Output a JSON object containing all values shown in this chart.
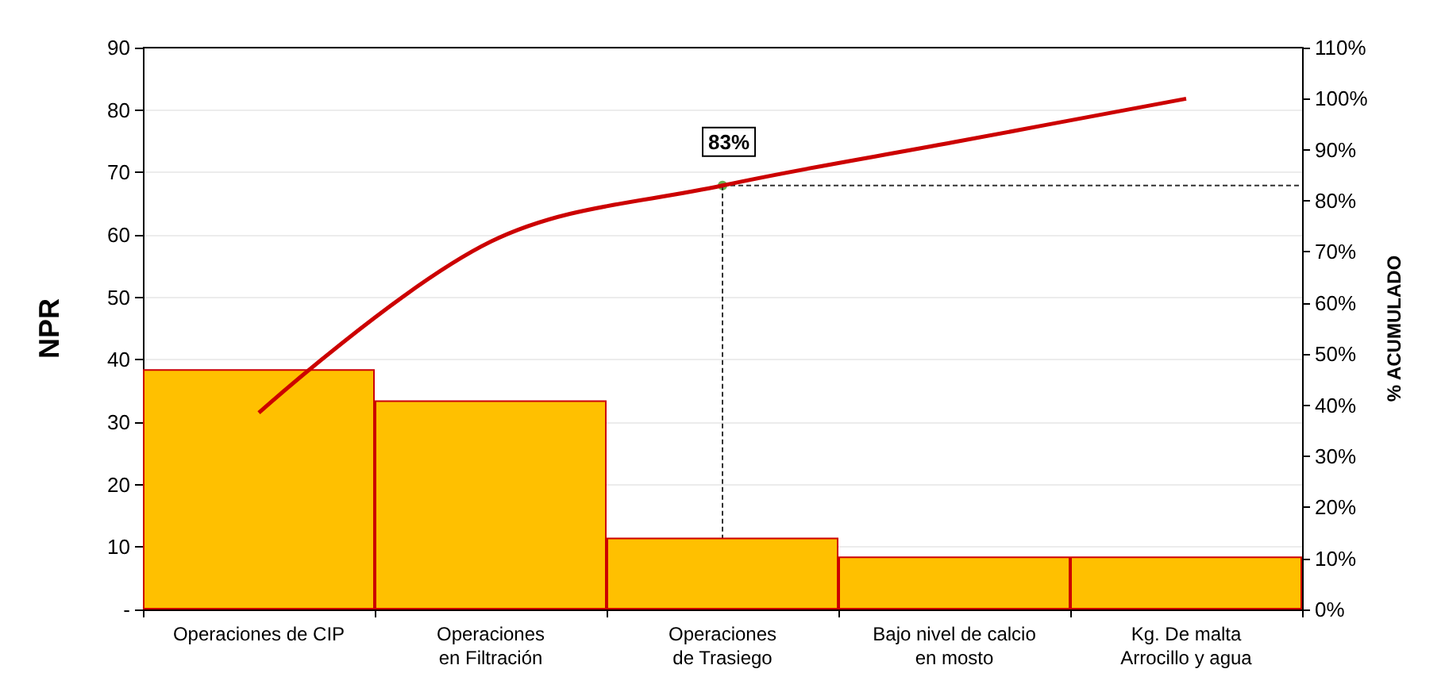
{
  "chart_data": {
    "type": "bar",
    "ylabel": "NPR",
    "y2label": "% ACUMULADO",
    "categories": [
      "Operaciones de CIP",
      "Operaciones\nen Filtración",
      "Operaciones\nde Trasiego",
      "Bajo nivel de calcio\nen mosto",
      "Kg. De malta\nArrocillo y agua"
    ],
    "series": [
      {
        "color": "#ffc000",
        "values": [
          38.5,
          33.5,
          11.5,
          8.5,
          8.5
        ]
      },
      {
        "type": "line",
        "axis": "y2",
        "color": "#cc0000",
        "values": [
          38.5,
          72,
          83,
          91.5,
          100
        ]
      }
    ],
    "ylim": [
      0,
      90
    ],
    "yticks": [
      {
        "value": 0,
        "label": "-"
      },
      10,
      20,
      30,
      40,
      50,
      60,
      70,
      80,
      90
    ],
    "y2lim": [
      0,
      110
    ],
    "y2ticks": [
      {
        "value": 0,
        "label": "0%"
      },
      {
        "value": 10,
        "label": "10%"
      },
      {
        "value": 20,
        "label": "20%"
      },
      {
        "value": 30,
        "label": "30%"
      },
      {
        "value": 40,
        "label": "40%"
      },
      {
        "value": 50,
        "label": "50%"
      },
      {
        "value": 60,
        "label": "60%"
      },
      {
        "value": 70,
        "label": "70%"
      },
      {
        "value": 80,
        "label": "80%"
      },
      {
        "value": 90,
        "label": "90%"
      },
      {
        "value": 100,
        "label": "100%"
      },
      {
        "value": 110,
        "label": "110%"
      }
    ],
    "ref_lines": [
      {
        "axis": "y2",
        "value": 83,
        "label": "83%",
        "color": "#333333",
        "line_style": "dashed"
      },
      {
        "axis": "x",
        "value": "Operaciones\nde Trasiego",
        "color": "#333333",
        "line_style": "dashed"
      }
    ],
    "grid": "y",
    "marker": "none",
    "line_style": "solid"
  }
}
